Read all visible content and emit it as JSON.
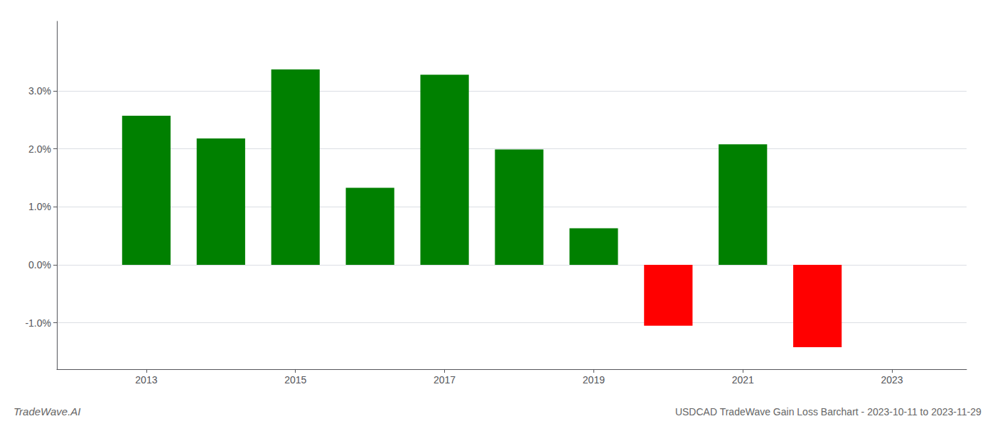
{
  "chart_data": {
    "type": "bar",
    "title": "USDCAD TradeWave Gain Loss Barchart - 2023-10-11 to 2023-11-29",
    "annotations": [
      "TradeWave.AI"
    ],
    "x": [
      2013,
      2014,
      2015,
      2016,
      2017,
      2018,
      2019,
      2020,
      2021,
      2022
    ],
    "values": [
      0.0257,
      0.0218,
      0.0337,
      0.0133,
      0.0328,
      0.0199,
      0.0063,
      -0.0105,
      0.0208,
      -0.0142
    ],
    "colors": [
      "#008000",
      "#008000",
      "#008000",
      "#008000",
      "#008000",
      "#008000",
      "#008000",
      "#ff0000",
      "#008000",
      "#ff0000"
    ],
    "xlim": [
      2011.8,
      2024.0
    ],
    "xticks": [
      2013,
      2015,
      2017,
      2019,
      2021,
      2023
    ],
    "ylim": [
      -0.018,
      0.042
    ],
    "yticks": [
      {
        "value": -0.01,
        "label": "-1.0%"
      },
      {
        "value": 0.0,
        "label": "0.0%"
      },
      {
        "value": 0.01,
        "label": "1.0%"
      },
      {
        "value": 0.02,
        "label": "2.0%"
      },
      {
        "value": 0.03,
        "label": "3.0%"
      }
    ],
    "grid": true
  }
}
